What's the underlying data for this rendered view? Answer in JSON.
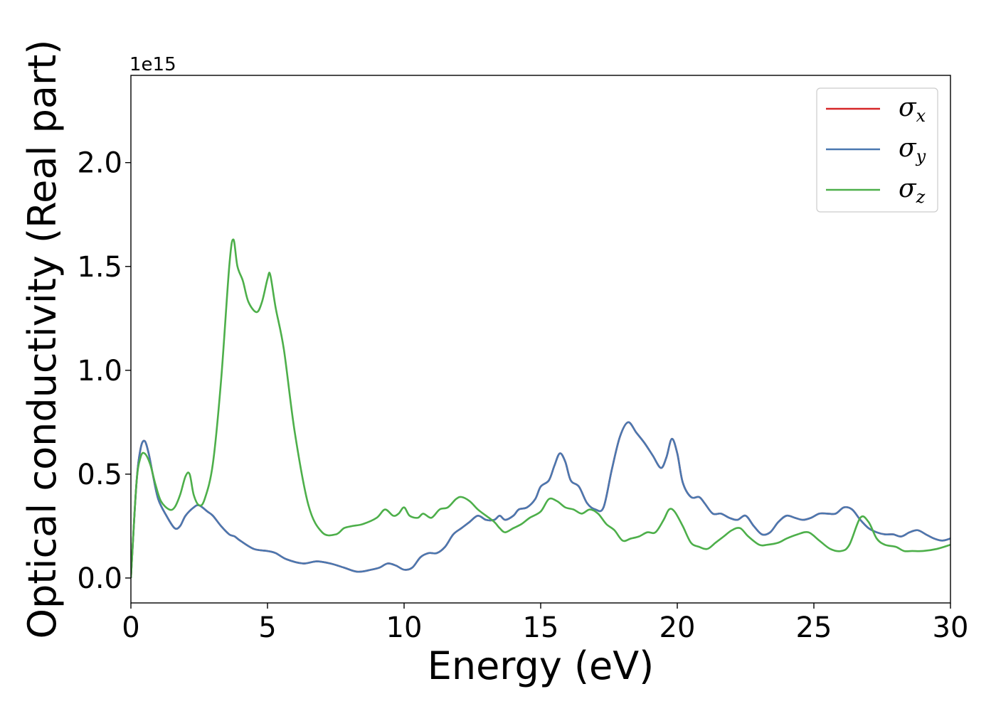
{
  "chart_data": {
    "type": "line",
    "title": "",
    "xlabel": "Energy (eV)",
    "ylabel": "Optical conductivity (Real part)",
    "y_offset_text": "1e15",
    "xlim": [
      0,
      30
    ],
    "ylim": [
      -0.12,
      2.42
    ],
    "xticks": [
      0,
      5,
      10,
      15,
      20,
      25,
      30
    ],
    "xtick_labels": [
      "0",
      "5",
      "10",
      "15",
      "20",
      "25",
      "30"
    ],
    "yticks": [
      0.0,
      0.5,
      1.0,
      1.5,
      2.0
    ],
    "ytick_labels": [
      "0.0",
      "0.5",
      "1.0",
      "1.5",
      "2.0"
    ],
    "grid": false,
    "legend_position": "top-right",
    "series": [
      {
        "name": "σ",
        "subscript": "x",
        "color": "#d62728",
        "x": [
          0,
          0.2,
          0.35,
          0.5,
          0.65,
          0.8,
          1.0,
          1.3,
          1.6,
          1.8,
          2.0,
          2.3,
          2.5,
          2.8,
          3.0,
          3.3,
          3.6,
          3.8,
          4.0,
          4.5,
          5.0,
          5.3,
          5.7,
          6.3,
          6.8,
          7.3,
          7.8,
          8.3,
          8.8,
          9.1,
          9.4,
          9.7,
          10.0,
          10.3,
          10.6,
          10.9,
          11.2,
          11.5,
          11.8,
          12.1,
          12.4,
          12.7,
          13.0,
          13.3,
          13.5,
          13.7,
          14.0,
          14.2,
          14.5,
          14.8,
          15.0,
          15.3,
          15.5,
          15.7,
          15.9,
          16.1,
          16.4,
          16.7,
          17.0,
          17.3,
          17.6,
          17.9,
          18.2,
          18.5,
          18.8,
          19.1,
          19.4,
          19.6,
          19.8,
          20.0,
          20.2,
          20.5,
          20.8,
          21.0,
          21.3,
          21.6,
          21.9,
          22.2,
          22.5,
          22.8,
          23.1,
          23.4,
          23.7,
          24.0,
          24.3,
          24.6,
          24.9,
          25.2,
          25.5,
          25.8,
          26.1,
          26.4,
          26.7,
          27.0,
          27.3,
          27.6,
          27.9,
          28.2,
          28.5,
          28.8,
          29.1,
          29.4,
          29.7,
          30.0
        ],
        "values": [
          0.0,
          0.45,
          0.62,
          0.66,
          0.6,
          0.5,
          0.38,
          0.3,
          0.24,
          0.25,
          0.3,
          0.34,
          0.35,
          0.32,
          0.3,
          0.25,
          0.21,
          0.2,
          0.18,
          0.14,
          0.13,
          0.12,
          0.09,
          0.07,
          0.08,
          0.07,
          0.05,
          0.03,
          0.04,
          0.05,
          0.07,
          0.06,
          0.04,
          0.05,
          0.1,
          0.12,
          0.12,
          0.15,
          0.21,
          0.24,
          0.27,
          0.3,
          0.28,
          0.28,
          0.3,
          0.28,
          0.3,
          0.33,
          0.34,
          0.38,
          0.44,
          0.47,
          0.54,
          0.6,
          0.56,
          0.47,
          0.44,
          0.36,
          0.33,
          0.34,
          0.52,
          0.68,
          0.75,
          0.7,
          0.65,
          0.59,
          0.53,
          0.58,
          0.67,
          0.6,
          0.46,
          0.39,
          0.39,
          0.36,
          0.31,
          0.31,
          0.29,
          0.28,
          0.3,
          0.25,
          0.21,
          0.22,
          0.27,
          0.3,
          0.29,
          0.28,
          0.29,
          0.31,
          0.31,
          0.31,
          0.34,
          0.33,
          0.28,
          0.24,
          0.22,
          0.21,
          0.21,
          0.2,
          0.22,
          0.23,
          0.21,
          0.19,
          0.18,
          0.19
        ],
        "hidden_behind": true
      },
      {
        "name": "σ",
        "subscript": "y",
        "color": "#4a78b0",
        "x": [
          0,
          0.2,
          0.35,
          0.5,
          0.65,
          0.8,
          1.0,
          1.3,
          1.6,
          1.8,
          2.0,
          2.3,
          2.5,
          2.8,
          3.0,
          3.3,
          3.6,
          3.8,
          4.0,
          4.5,
          5.0,
          5.3,
          5.7,
          6.3,
          6.8,
          7.3,
          7.8,
          8.3,
          8.8,
          9.1,
          9.4,
          9.7,
          10.0,
          10.3,
          10.6,
          10.9,
          11.2,
          11.5,
          11.8,
          12.1,
          12.4,
          12.7,
          13.0,
          13.3,
          13.5,
          13.7,
          14.0,
          14.2,
          14.5,
          14.8,
          15.0,
          15.3,
          15.5,
          15.7,
          15.9,
          16.1,
          16.4,
          16.7,
          17.0,
          17.3,
          17.6,
          17.9,
          18.2,
          18.5,
          18.8,
          19.1,
          19.4,
          19.6,
          19.8,
          20.0,
          20.2,
          20.5,
          20.8,
          21.0,
          21.3,
          21.6,
          21.9,
          22.2,
          22.5,
          22.8,
          23.1,
          23.4,
          23.7,
          24.0,
          24.3,
          24.6,
          24.9,
          25.2,
          25.5,
          25.8,
          26.1,
          26.4,
          26.7,
          27.0,
          27.3,
          27.6,
          27.9,
          28.2,
          28.5,
          28.8,
          29.1,
          29.4,
          29.7,
          30.0
        ],
        "values": [
          0.0,
          0.45,
          0.62,
          0.66,
          0.6,
          0.5,
          0.38,
          0.3,
          0.24,
          0.25,
          0.3,
          0.34,
          0.35,
          0.32,
          0.3,
          0.25,
          0.21,
          0.2,
          0.18,
          0.14,
          0.13,
          0.12,
          0.09,
          0.07,
          0.08,
          0.07,
          0.05,
          0.03,
          0.04,
          0.05,
          0.07,
          0.06,
          0.04,
          0.05,
          0.1,
          0.12,
          0.12,
          0.15,
          0.21,
          0.24,
          0.27,
          0.3,
          0.28,
          0.28,
          0.3,
          0.28,
          0.3,
          0.33,
          0.34,
          0.38,
          0.44,
          0.47,
          0.54,
          0.6,
          0.56,
          0.47,
          0.44,
          0.36,
          0.33,
          0.34,
          0.52,
          0.68,
          0.75,
          0.7,
          0.65,
          0.59,
          0.53,
          0.58,
          0.67,
          0.6,
          0.46,
          0.39,
          0.39,
          0.36,
          0.31,
          0.31,
          0.29,
          0.28,
          0.3,
          0.25,
          0.21,
          0.22,
          0.27,
          0.3,
          0.29,
          0.28,
          0.29,
          0.31,
          0.31,
          0.31,
          0.34,
          0.33,
          0.28,
          0.24,
          0.22,
          0.21,
          0.21,
          0.2,
          0.22,
          0.23,
          0.21,
          0.19,
          0.18,
          0.19
        ]
      },
      {
        "name": "σ",
        "subscript": "z",
        "color": "#4daf4a",
        "x": [
          0,
          0.2,
          0.35,
          0.5,
          0.7,
          0.9,
          1.1,
          1.4,
          1.6,
          1.8,
          2.0,
          2.15,
          2.3,
          2.5,
          2.7,
          3.0,
          3.3,
          3.6,
          3.75,
          3.9,
          4.1,
          4.3,
          4.6,
          4.8,
          5.0,
          5.1,
          5.3,
          5.6,
          6.0,
          6.5,
          7.0,
          7.5,
          7.8,
          8.1,
          8.5,
          9.0,
          9.3,
          9.6,
          9.8,
          10.0,
          10.2,
          10.5,
          10.7,
          11.0,
          11.3,
          11.6,
          11.9,
          12.1,
          12.4,
          12.7,
          13.0,
          13.3,
          13.5,
          13.7,
          14.0,
          14.3,
          14.6,
          15.0,
          15.3,
          15.6,
          15.9,
          16.2,
          16.5,
          16.8,
          17.1,
          17.4,
          17.7,
          18.0,
          18.3,
          18.6,
          18.9,
          19.2,
          19.5,
          19.7,
          19.9,
          20.2,
          20.5,
          20.8,
          21.1,
          21.4,
          21.7,
          22.0,
          22.3,
          22.6,
          23.0,
          23.3,
          23.7,
          24.0,
          24.4,
          24.8,
          25.2,
          25.6,
          26.0,
          26.3,
          26.7,
          27.0,
          27.3,
          27.6,
          28.0,
          28.3,
          28.6,
          29.0,
          29.5,
          30.0
        ],
        "values": [
          0.0,
          0.45,
          0.58,
          0.6,
          0.55,
          0.45,
          0.37,
          0.33,
          0.34,
          0.4,
          0.49,
          0.5,
          0.4,
          0.35,
          0.38,
          0.55,
          0.95,
          1.5,
          1.63,
          1.5,
          1.43,
          1.33,
          1.28,
          1.33,
          1.44,
          1.46,
          1.3,
          1.1,
          0.7,
          0.35,
          0.22,
          0.21,
          0.24,
          0.25,
          0.26,
          0.29,
          0.33,
          0.3,
          0.31,
          0.34,
          0.3,
          0.29,
          0.31,
          0.29,
          0.33,
          0.34,
          0.38,
          0.39,
          0.37,
          0.33,
          0.3,
          0.27,
          0.24,
          0.22,
          0.24,
          0.26,
          0.29,
          0.32,
          0.38,
          0.37,
          0.34,
          0.33,
          0.31,
          0.33,
          0.31,
          0.26,
          0.23,
          0.18,
          0.19,
          0.2,
          0.22,
          0.22,
          0.28,
          0.33,
          0.32,
          0.25,
          0.17,
          0.15,
          0.14,
          0.17,
          0.2,
          0.23,
          0.24,
          0.2,
          0.16,
          0.16,
          0.17,
          0.19,
          0.21,
          0.22,
          0.18,
          0.14,
          0.13,
          0.16,
          0.29,
          0.27,
          0.19,
          0.16,
          0.15,
          0.13,
          0.13,
          0.13,
          0.14,
          0.16
        ]
      }
    ]
  }
}
